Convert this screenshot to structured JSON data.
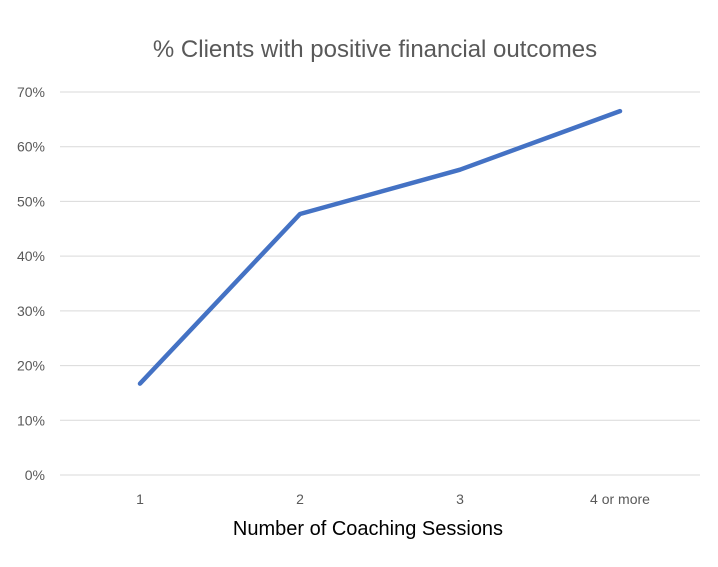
{
  "chart_data": {
    "type": "line",
    "title": "% Clients with positive financial outcomes",
    "xlabel": "Number of Coaching Sessions",
    "ylabel": "",
    "categories": [
      "1",
      "2",
      "3",
      "4 or more"
    ],
    "series": [
      {
        "values": [
          16.7,
          47.7,
          55.8,
          66.5
        ],
        "color": "#4472C4"
      }
    ],
    "ylim": [
      0,
      70
    ],
    "yticks": [
      "0%",
      "10%",
      "20%",
      "30%",
      "40%",
      "50%",
      "60%",
      "70%"
    ],
    "grid": true,
    "legend": "none"
  }
}
